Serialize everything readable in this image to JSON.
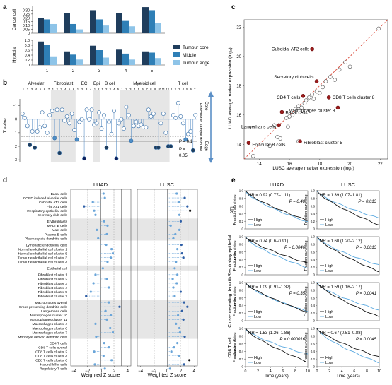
{
  "panel_a": {
    "label": "a",
    "row1_label": "Cancer cell",
    "row2_label": "Hypoxia",
    "row1_ticks": [
      "0.30",
      "0.25",
      "0.20",
      "0.15",
      "0.10",
      "0.05",
      "0"
    ],
    "row2_ticks": [
      "1.0",
      "0.8",
      "0.6",
      "0.4",
      "0.2",
      "0"
    ],
    "xcats": [
      "1",
      "2",
      "3",
      "4",
      "5"
    ],
    "legend": [
      "Tumour core",
      "Middle",
      "Tumour edge"
    ],
    "colors": {
      "core": "#1f3d5c",
      "middle": "#2f7fb6",
      "edge": "#8ec4e8"
    }
  },
  "panel_b": {
    "label": "b",
    "groups": [
      "Alveolar",
      "Fibroblast",
      "EC",
      "Epi",
      "B cell",
      "Myeloid cell",
      "T cell"
    ],
    "ylabel": "T value",
    "yticks": [
      "−1",
      "0",
      "1",
      "2",
      "3"
    ],
    "right_label": "Enriched in sample from the",
    "core": "Core",
    "edge": "Edge",
    "p1": "P = 0.1",
    "p2": "P =",
    "p3": "0.05"
  },
  "panel_c": {
    "label": "c",
    "xlabel": "LUSC average marker expression (log₂)",
    "ylabel": "LUAD average marker expression (log₂)",
    "xticks": [
      "14",
      "16",
      "18",
      "20",
      "22"
    ],
    "yticks": [
      "14",
      "16",
      "18",
      "20",
      "22"
    ],
    "annotations": [
      "Cuboidal AT2 cells",
      "Secretory club cells",
      "CD4 T cells",
      "CD8 T cells cluster 8",
      "Macrophages cluster 8",
      "Basal cells",
      "Langerhans cells",
      "Follicular B cells",
      "Fibroblast cluster 5"
    ]
  },
  "panel_d": {
    "label": "d",
    "col1": "LUAD",
    "col2": "LUSC",
    "xlabel": "Weighted Z score",
    "xticks": [
      "−4",
      "−2",
      "0",
      "2",
      "4"
    ],
    "rows": [
      "Basal cells",
      "COPD induced alveolar cells",
      "Cuboidal AT2 cells",
      "Flat AT1 cells",
      "Respiratory epithelial cells",
      "Secretory club cells",
      "Erythroblasts",
      "MALT B cells",
      "Mast cells",
      "Plasma B cells",
      "Plasmacytoid dendritic cells",
      "Lymphatic endothelial cells",
      "Normal endothelial cell cluster 1",
      "Normal endothelial cell cluster 5",
      "Tumour endothelial cell cluster 3",
      "Tumour endothelial cell cluster 4",
      "Epithelial cell",
      "Fibroblast cluster 1",
      "Fibroblast cluster 2",
      "Fibroblast cluster 3",
      "Fibroblast cluster 4",
      "Fibroblast cluster 5",
      "Fibroblast cluster 7",
      "Macrophages overall",
      "Cross-presenting dendritic cells",
      "Langerhans cells",
      "Macrophages cluster 10",
      "Macrophages cluster 11",
      "Macrophages cluster 4",
      "Macrophages cluster 6",
      "Macrophages cluster 7",
      "Monocyte derived dendritic cells",
      "CD4 T cells",
      "CD8 T cells overall",
      "CD8 T cells cluster 2",
      "CD8 T cells cluster 4",
      "CD8 T cells cluster 6",
      "Natural killer cells",
      "Regulatory T cells"
    ]
  },
  "panel_e": {
    "label": "e",
    "col1": "LUAD",
    "col2": "LUSC",
    "row_labels": [
      "AT1",
      "Respiratory epithelial cells",
      "Cross-presenting dendritic cells",
      "CD8 T cell cluster 8"
    ],
    "ylabel": "Fraction surviving",
    "xlabel": "Time (years)",
    "xticks": [
      "0",
      "2",
      "4",
      "6",
      "8",
      "10"
    ],
    "yticks": [
      "1.0",
      "0.8",
      "0.6",
      "0.4",
      "0.2",
      "0"
    ],
    "legend_high": "High",
    "legend_low": "Low",
    "stats": [
      {
        "hr": "HR = 0.92 (0.77–1.11)",
        "p": "P = 0.40"
      },
      {
        "hr": "HR = 1.39 (1.07–1.81)",
        "p": "P = 0.013"
      },
      {
        "hr": "HR = 0.74 (0.6–0.91)",
        "p": "P = 0.0046"
      },
      {
        "hr": "HR = 1.60 (1.20–2.12)",
        "p": "P = 0.0013"
      },
      {
        "hr": "HR = 1.09 (0.91–1.32)",
        "p": "P = 0.35"
      },
      {
        "hr": "HR = 1.59 (1.16–2.17)",
        "p": "P = 0.0041"
      },
      {
        "hr": "HR = 1.53 (1.26–1.86)",
        "p": "P = 0.000016"
      },
      {
        "hr": "HR = 0.67 (0.51–0.88)",
        "p": "P = 0.0045"
      }
    ]
  },
  "chart_data": [
    {
      "type": "bar",
      "title": "Cancer cell",
      "categories": [
        "1",
        "2",
        "3",
        "4",
        "5"
      ],
      "ylim": [
        0,
        0.35
      ],
      "series": [
        {
          "name": "Tumour core",
          "values": [
            0.2,
            0.26,
            0.3,
            0.26,
            0.34
          ]
        },
        {
          "name": "Middle",
          "values": [
            0.18,
            0.12,
            0.18,
            0.16,
            0.3
          ]
        },
        {
          "name": "Tumour edge",
          "values": [
            0.12,
            0.05,
            0.1,
            0.09,
            0.13
          ]
        }
      ]
    },
    {
      "type": "bar",
      "title": "Hypoxia",
      "categories": [
        "1",
        "2",
        "3",
        "4",
        "5"
      ],
      "ylim": [
        0,
        1.0
      ],
      "series": [
        {
          "name": "Tumour core",
          "values": [
            0.95,
            0.55,
            0.78,
            0.62,
            0.55
          ]
        },
        {
          "name": "Middle",
          "values": [
            0.82,
            0.42,
            0.6,
            0.46,
            0.5
          ]
        },
        {
          "name": "Tumour edge",
          "values": [
            0.35,
            0.22,
            0.3,
            0.22,
            0.28
          ]
        }
      ]
    },
    {
      "type": "lollipop",
      "ylim": [
        -1.5,
        3.2
      ],
      "values": [
        -0.4,
        -0.1,
        0.5,
        1.9,
        0.9,
        2.1,
        0.9,
        0.6,
        -0.5,
        0.5,
        1.0,
        -0.3,
        -0.6,
        1.4,
        -0.7,
        2.5,
        -0.7,
        0.1,
        -0.2,
        0.3,
        -0.4,
        0.8,
        1.5,
        0.2,
        0.0,
        2.9,
        -0.7,
        0.0,
        -0.7,
        0.4,
        0.3,
        -0.5,
        0.7,
        -0.3,
        2.1,
        0.2,
        1.1,
        -0.6,
        2.9,
        0.3,
        0.0,
        0.7,
        -0.9,
        -0.3,
        1.6,
        0.5,
        0.2,
        0.5,
        0.4,
        0.6,
        0.6,
        -0.7,
        -0.2,
        -0.4,
        2.1,
        2.1,
        0.3,
        -0.4,
        1.0,
        2.0,
        2.0,
        -0.3,
        -0.1,
        -1.2,
        -0.2,
        0.3,
        1.5,
        1.1,
        0.9,
        2.3,
        -0.3
      ]
    },
    {
      "type": "scatter",
      "xlabel": "LUSC average marker expression (log₂)",
      "ylabel": "LUAD average marker expression (log₂)",
      "xlim": [
        13,
        22.5
      ],
      "ylim": [
        13,
        22.5
      ],
      "points": [
        [
          13.6,
          13.2
        ],
        [
          14.7,
          13.9
        ],
        [
          15.2,
          14.5
        ],
        [
          15.4,
          14.4
        ],
        [
          15.9,
          15.2
        ],
        [
          16.6,
          14.2
        ],
        [
          15.0,
          15.3
        ],
        [
          15.8,
          15.8
        ],
        [
          16.0,
          15.9
        ],
        [
          16.2,
          16.0
        ],
        [
          16.4,
          16.4
        ],
        [
          16.6,
          16.6
        ],
        [
          16.8,
          16.5
        ],
        [
          17.0,
          16.8
        ],
        [
          17.1,
          17.0
        ],
        [
          17.3,
          17.2
        ],
        [
          17.5,
          17.4
        ],
        [
          17.6,
          17.1
        ],
        [
          17.8,
          17.6
        ],
        [
          18.0,
          17.5
        ],
        [
          18.2,
          17.9
        ],
        [
          18.4,
          18.3
        ],
        [
          18.7,
          18.6
        ],
        [
          19.0,
          18.4
        ],
        [
          19.3,
          19.1
        ],
        [
          19.7,
          19.6
        ],
        [
          20.0,
          19.3
        ],
        [
          21.9,
          21.9
        ],
        [
          17.5,
          20.5
        ],
        [
          17.8,
          18.3
        ],
        [
          16.9,
          17.3
        ],
        [
          18.6,
          17.2
        ],
        [
          19.2,
          16.5
        ],
        [
          15.5,
          16.2
        ],
        [
          15.3,
          15.3
        ],
        [
          13.3,
          14.1
        ],
        [
          16.7,
          14.2
        ]
      ],
      "highlighted": [
        "Cuboidal AT2 cells",
        "Secretory club cells",
        "CD4 T cells",
        "CD8 T cells cluster 8",
        "Macrophages cluster 8",
        "Basal cells",
        "Langerhans cells",
        "Follicular B cells",
        "Fibroblast cluster 5"
      ]
    },
    {
      "type": "dotplot",
      "title": "LUAD",
      "xlabel": "Weighted Z score",
      "xlim": [
        -4.5,
        4.5
      ],
      "values": [
        0.4,
        0.6,
        -1.2,
        -2.5,
        -1.0,
        -0.8,
        0.5,
        1.0,
        -0.6,
        0.9,
        -0.4,
        0.8,
        1.6,
        1.8,
        1.5,
        1.0,
        0.3,
        -0.8,
        0.9,
        -1.1,
        1.2,
        -1.5,
        -2.2,
        1.2,
        2.8,
        0.7,
        1.5,
        0.9,
        -0.8,
        1.4,
        1.8,
        -0.7,
        0.5,
        1.2,
        -1.0,
        0.4,
        1.6,
        -0.9,
        0.6
      ]
    },
    {
      "type": "dotplot",
      "title": "LUSC",
      "xlabel": "Weighted Z score",
      "xlim": [
        -4.5,
        4.5
      ],
      "values": [
        1.4,
        2.6,
        1.8,
        3.0,
        3.4,
        1.8,
        2.0,
        0.5,
        1.8,
        1.2,
        0.9,
        2.1,
        1.5,
        2.2,
        2.4,
        1.3,
        1.1,
        1.5,
        0.8,
        1.4,
        0.9,
        2.0,
        1.1,
        2.5,
        3.0,
        2.2,
        1.6,
        2.4,
        1.3,
        1.8,
        1.9,
        2.6,
        1.5,
        1.0,
        0.6,
        1.8,
        3.3,
        2.5,
        0.4
      ]
    }
  ]
}
